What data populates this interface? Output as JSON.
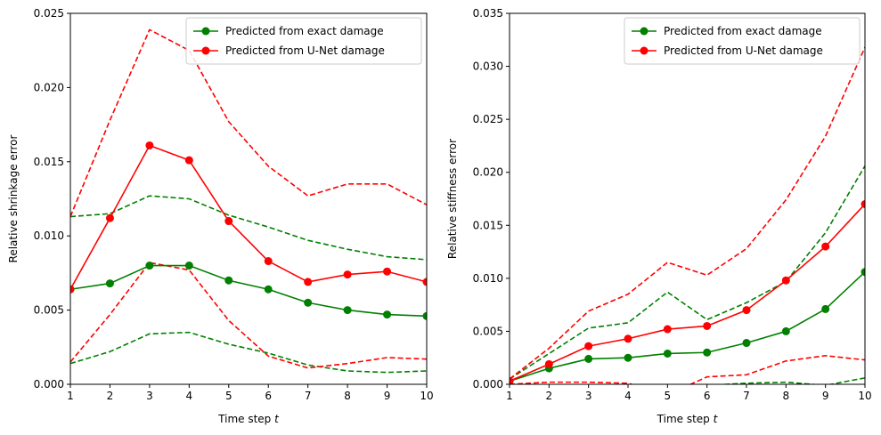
{
  "chart_data": [
    {
      "type": "line",
      "xlabel": "Time step",
      "xlabel_var": "t",
      "ylabel": "Relative shrinkage error",
      "xlim": [
        1,
        10
      ],
      "ylim": [
        0,
        0.025
      ],
      "xticks": [
        "1",
        "2",
        "3",
        "4",
        "5",
        "6",
        "7",
        "8",
        "9",
        "10"
      ],
      "yticks": [
        "0.000",
        "0.005",
        "0.010",
        "0.015",
        "0.020",
        "0.025"
      ],
      "legend_position": "top-right",
      "grid": false,
      "x": [
        1,
        2,
        3,
        4,
        5,
        6,
        7,
        8,
        9,
        10
      ],
      "series": [
        {
          "name": "Predicted from exact damage",
          "color": "#008000",
          "style": "solid-marker",
          "values": [
            0.0064,
            0.0068,
            0.008,
            0.008,
            0.007,
            0.0064,
            0.0055,
            0.005,
            0.0047,
            0.0046
          ]
        },
        {
          "name": "Predicted from U-Net damage",
          "color": "#ff0000",
          "style": "solid-marker",
          "values": [
            0.0064,
            0.0112,
            0.0161,
            0.0151,
            0.011,
            0.0083,
            0.0069,
            0.0074,
            0.0076,
            0.0069
          ]
        },
        {
          "color": "#008000",
          "style": "dashed",
          "values": [
            0.0113,
            0.0115,
            0.0127,
            0.0125,
            0.0114,
            0.0106,
            0.0097,
            0.0091,
            0.0086,
            0.0084
          ]
        },
        {
          "color": "#008000",
          "style": "dashed",
          "values": [
            0.0014,
            0.0022,
            0.0034,
            0.0035,
            0.0027,
            0.0021,
            0.0013,
            0.0009,
            0.0008,
            0.0009
          ]
        },
        {
          "color": "#ff0000",
          "style": "dashed",
          "values": [
            0.0113,
            0.0178,
            0.0239,
            0.0225,
            0.0177,
            0.0147,
            0.0127,
            0.0135,
            0.0135,
            0.0121
          ]
        },
        {
          "color": "#ff0000",
          "style": "dashed",
          "values": [
            0.0015,
            0.0047,
            0.0082,
            0.0077,
            0.0043,
            0.0019,
            0.0011,
            0.0014,
            0.0018,
            0.0017
          ]
        }
      ]
    },
    {
      "type": "line",
      "xlabel": "Time step",
      "xlabel_var": "t",
      "ylabel": "Relative stiffness error",
      "xlim": [
        1,
        10
      ],
      "ylim": [
        0,
        0.035
      ],
      "xticks": [
        "1",
        "2",
        "3",
        "4",
        "5",
        "6",
        "7",
        "8",
        "9",
        "10"
      ],
      "yticks": [
        "0.000",
        "0.005",
        "0.010",
        "0.015",
        "0.020",
        "0.025",
        "0.030",
        "0.035"
      ],
      "legend_position": "top-right",
      "grid": false,
      "x": [
        1,
        2,
        3,
        4,
        5,
        6,
        7,
        8,
        9,
        10
      ],
      "series": [
        {
          "name": "Predicted from exact damage",
          "color": "#008000",
          "style": "solid-marker",
          "values": [
            0.0003,
            0.0015,
            0.0024,
            0.0025,
            0.0029,
            0.003,
            0.0039,
            0.005,
            0.0071,
            0.0106
          ]
        },
        {
          "name": "Predicted from U-Net damage",
          "color": "#ff0000",
          "style": "solid-marker",
          "values": [
            0.0003,
            0.0019,
            0.0036,
            0.0043,
            0.0052,
            0.0055,
            0.007,
            0.0098,
            0.013,
            0.017
          ]
        },
        {
          "color": "#008000",
          "style": "dashed",
          "values": [
            0.0005,
            0.0029,
            0.0053,
            0.0058,
            0.0087,
            0.0061,
            0.0077,
            0.0097,
            0.0143,
            0.0206
          ]
        },
        {
          "color": "#008000",
          "style": "dashed",
          "values": [
            -0.0005,
            -0.0002,
            -0.0005,
            -0.0009,
            -0.001,
            -0.0001,
            0.0001,
            0.0002,
            -0.0001,
            0.0006
          ]
        },
        {
          "color": "#ff0000",
          "style": "dashed",
          "values": [
            0.0005,
            0.0034,
            0.0069,
            0.0085,
            0.0115,
            0.0103,
            0.0128,
            0.0174,
            0.0234,
            0.0318
          ]
        },
        {
          "color": "#ff0000",
          "style": "dashed",
          "values": [
            0.0,
            0.0002,
            0.0002,
            0.0001,
            -0.001,
            0.0007,
            0.0009,
            0.0022,
            0.0027,
            0.0023
          ]
        }
      ]
    }
  ]
}
